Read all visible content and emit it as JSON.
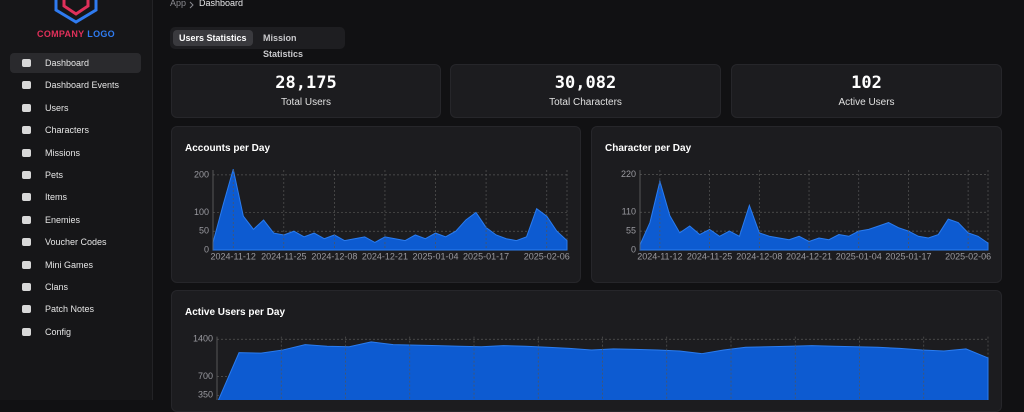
{
  "logo": {
    "part1": "COMPANY",
    "part2": "LOGO"
  },
  "nav": [
    "Dashboard",
    "Dashboard Events",
    "Users",
    "Characters",
    "Missions",
    "Pets",
    "Items",
    "Enemies",
    "Voucher Codes",
    "Mini Games",
    "Clans",
    "Patch Notes",
    "Config"
  ],
  "breadcrumb": [
    "App",
    "Dashboard"
  ],
  "tabs": [
    "Users Statistics",
    "Mission Statistics"
  ],
  "stats": [
    {
      "value": "28,175",
      "label": "Total Users"
    },
    {
      "value": "30,082",
      "label": "Total Characters"
    },
    {
      "value": "102",
      "label": "Active Users"
    }
  ],
  "chart_data": [
    {
      "type": "area",
      "title": "Accounts per Day",
      "color": "#0d5bd1",
      "grid": true,
      "categories": [
        null,
        null,
        "2024-11-12",
        null,
        null,
        null,
        null,
        "2024-11-25",
        null,
        null,
        null,
        null,
        "2024-12-08",
        null,
        null,
        null,
        null,
        "2024-12-21",
        null,
        null,
        null,
        null,
        "2025-01-04",
        null,
        null,
        null,
        null,
        "2025-01-17",
        null,
        null,
        null,
        null,
        null,
        "2025-02-06",
        null,
        null
      ],
      "values": [
        20,
        120,
        215,
        90,
        55,
        80,
        45,
        40,
        50,
        35,
        45,
        30,
        40,
        25,
        30,
        35,
        20,
        35,
        30,
        25,
        40,
        30,
        45,
        35,
        50,
        80,
        100,
        60,
        40,
        30,
        25,
        35,
        110,
        90,
        50,
        25
      ],
      "ylim": [
        0,
        213
      ],
      "yticks": [
        0,
        50,
        100,
        200
      ]
    },
    {
      "type": "area",
      "title": "Character per Day",
      "color": "#0d5bd1",
      "grid": true,
      "categories": [
        null,
        null,
        "2024-11-12",
        null,
        null,
        null,
        null,
        "2024-11-25",
        null,
        null,
        null,
        null,
        "2024-12-08",
        null,
        null,
        null,
        null,
        "2024-12-21",
        null,
        null,
        null,
        null,
        "2025-01-04",
        null,
        null,
        null,
        null,
        "2025-01-17",
        null,
        null,
        null,
        null,
        null,
        "2025-02-06",
        null,
        null
      ],
      "values": [
        15,
        80,
        200,
        100,
        50,
        70,
        45,
        60,
        40,
        55,
        40,
        130,
        50,
        40,
        35,
        30,
        40,
        25,
        35,
        30,
        45,
        40,
        55,
        60,
        70,
        80,
        65,
        55,
        40,
        35,
        45,
        90,
        80,
        50,
        40,
        20
      ],
      "ylim": [
        0,
        233
      ],
      "yticks": [
        0,
        55,
        110,
        220
      ]
    },
    {
      "type": "area",
      "title": "Active Users per Day",
      "color": "#0d5bd1",
      "grid": true,
      "values": [
        200,
        1150,
        1140,
        1200,
        1300,
        1270,
        1260,
        1350,
        1300,
        1290,
        1280,
        1270,
        1260,
        1280,
        1270,
        1250,
        1230,
        1200,
        1220,
        1210,
        1200,
        1180,
        1130,
        1200,
        1250,
        1260,
        1270,
        1280,
        1270,
        1260,
        1250,
        1230,
        1200,
        1180,
        1220,
        1050
      ],
      "ylim": [
        0,
        1450
      ],
      "yticks": [
        350,
        700,
        1400
      ]
    }
  ]
}
